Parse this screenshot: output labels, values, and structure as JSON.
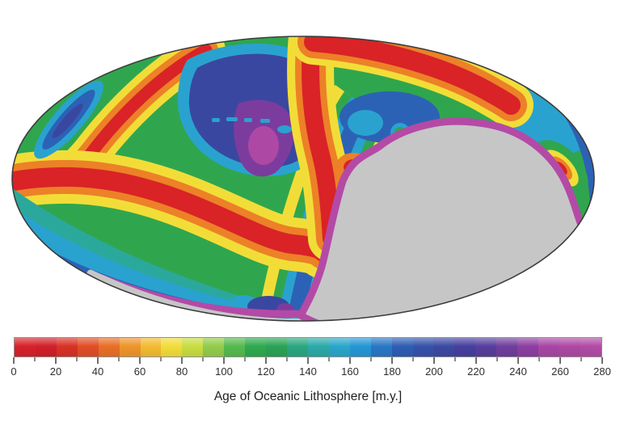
{
  "figure": {
    "caption": "Age of Oceanic Lithosphere [m.y.]",
    "background_color": "#ffffff"
  },
  "colorbar": {
    "min": 0,
    "max": 280,
    "unit": "m.y.",
    "segment_step": 10,
    "minor_tick_step": 10,
    "major_tick_step": 20,
    "tick_labels": [
      "0",
      "20",
      "40",
      "60",
      "80",
      "100",
      "120",
      "140",
      "160",
      "180",
      "200",
      "220",
      "240",
      "260",
      "280"
    ],
    "segment_colors": [
      "#d7212a",
      "#d02029",
      "#d83225",
      "#e14e26",
      "#e86f27",
      "#ee952b",
      "#f2bb31",
      "#f1dc3a",
      "#c8dd41",
      "#93cc4b",
      "#55ba4e",
      "#2fa94e",
      "#2aa355",
      "#2ba67f",
      "#2ca9a9",
      "#2aa6ca",
      "#2596d5",
      "#2a77c5",
      "#2e5db4",
      "#3552a9",
      "#3c49a2",
      "#463f9e",
      "#573e9d",
      "#6f3e9d",
      "#8c3fa0",
      "#a746a4",
      "#ae48a3",
      "#b24ba4"
    ],
    "frame_color": "#909090"
  },
  "palette": {
    "red": "#d92327",
    "orange": "#ec8127",
    "yellow": "#f2dd38",
    "yellow_green": "#bcd93f",
    "green": "#2fa64e",
    "teal": "#2ba89c",
    "cyan": "#2aa2cf",
    "blue": "#2c62b6",
    "dark_blue": "#3a47a0",
    "violet": "#7c3c9d",
    "magenta": "#ad49a4",
    "magenta_rim": "#b44aa6",
    "gray_land": "#c6c6c7",
    "outline": "#3c3c3c"
  },
  "map": {
    "projection": "elliptical global projection (Mollweide-style)",
    "no_data_label": "continent / no age data",
    "no_data_color": "#c6c6c7"
  },
  "chart_data": {
    "type": "heatmap",
    "subtype": "global-map-colorbar-figure",
    "title": "Age of Oceanic Lithosphere [m.y.]",
    "variable": "age of oceanic lithosphere",
    "unit": "m.y.",
    "value_range": [
      0,
      280
    ],
    "colorbar_tick_values": [
      0,
      20,
      40,
      60,
      80,
      100,
      120,
      140,
      160,
      180,
      200,
      220,
      240,
      260,
      280
    ],
    "colorbar_segment_step": 10,
    "colorbar_segment_colors": [
      "#d7212a",
      "#d02029",
      "#d83225",
      "#e14e26",
      "#e86f27",
      "#ee952b",
      "#f2bb31",
      "#f1dc3a",
      "#c8dd41",
      "#93cc4b",
      "#55ba4e",
      "#2fa94e",
      "#2aa355",
      "#2ba67f",
      "#2ca9a9",
      "#2aa6ca",
      "#2596d5",
      "#2a77c5",
      "#2e5db4",
      "#3552a9",
      "#3c49a2",
      "#463f9e",
      "#573e9d",
      "#6f3e9d",
      "#8c3fa0",
      "#a746a4",
      "#ae48a3",
      "#b24ba4"
    ],
    "no_data": {
      "label": "continent / no seafloor-age data",
      "color": "#c6c6c7"
    },
    "legend_position": "bottom",
    "map_features": [
      {
        "feature": "mid-ocean ridge bands (age ~0-20 m.y., red with yellow-orange halos)",
        "location": "S-shaped band across left half, vertical band at top center, band hugging upper boundary"
      },
      {
        "feature": "old oceanic basin (~180-280 m.y., dark blue with violet/magenta core)",
        "location": "upper-center interior"
      },
      {
        "feature": "elongated old blue streak with cyan fringe",
        "location": "upper-left near ellipse boundary"
      },
      {
        "feature": "oldest lithosphere rim (~280 m.y., magenta) fringing continental margin",
        "location": "around gray landmass and along lower-left boundary"
      },
      {
        "feature": "large gray continent (no data)",
        "location": "center-right and lower-right of ellipse, plus sliver along bottom edge"
      },
      {
        "feature": "young colorful patch (red core ringed by orange/yellow/green) on blue strip",
        "location": "right edge"
      },
      {
        "feature": "cyan-to-blue aging bands",
        "location": "lower-left boundary and left of continental margin"
      }
    ]
  }
}
